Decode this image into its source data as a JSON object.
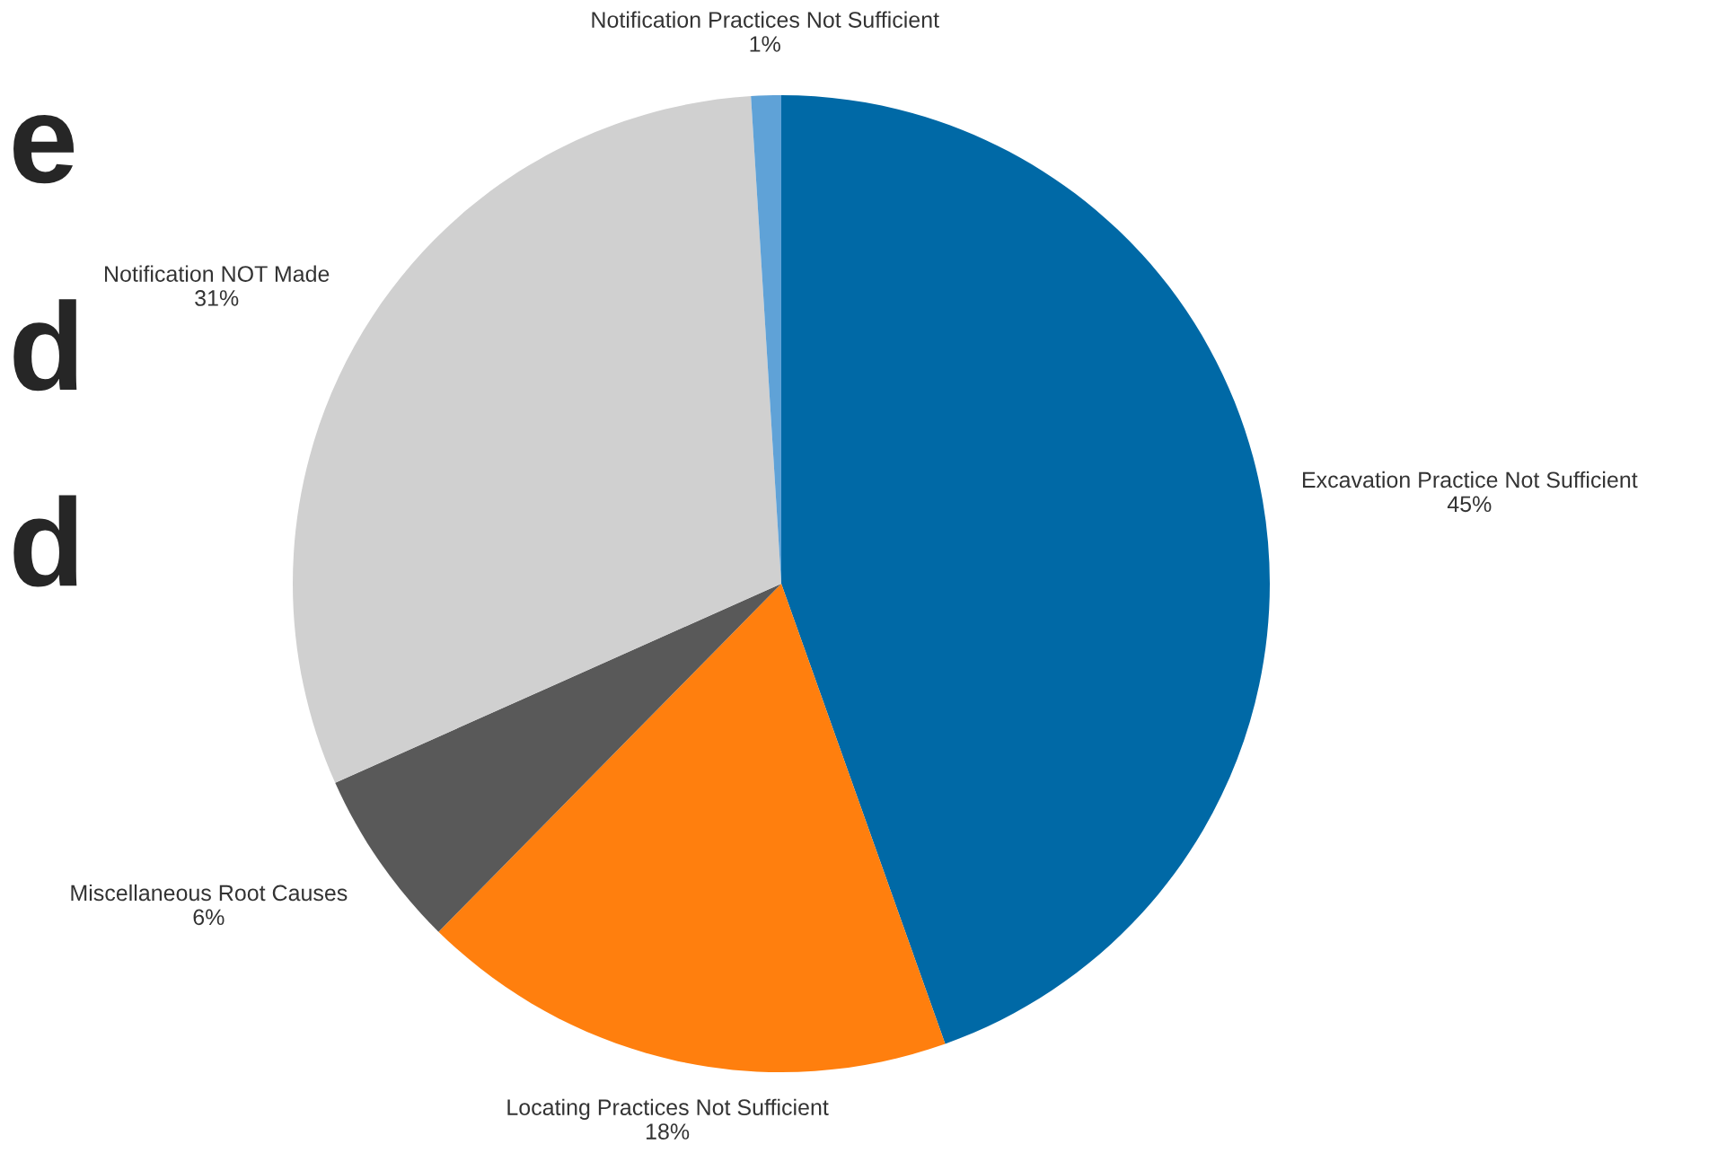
{
  "chart_data": {
    "type": "pie",
    "categories": [
      "Excavation Practice Not Sufficient",
      "Locating Practices Not Sufficient",
      "Miscellaneous Root Causes",
      "Notification NOT Made",
      "Notification Practices Not Sufficient"
    ],
    "values": [
      45,
      18,
      6,
      31,
      1
    ],
    "value_labels": [
      "45%",
      "18%",
      "6%",
      "31%",
      "1%"
    ],
    "colors": [
      "#0069a6",
      "#ff7f0e",
      "#595959",
      "#d0d0d0",
      "#5fa2d7"
    ],
    "annotations": [
      "e",
      "d",
      "d"
    ],
    "legend": false
  }
}
